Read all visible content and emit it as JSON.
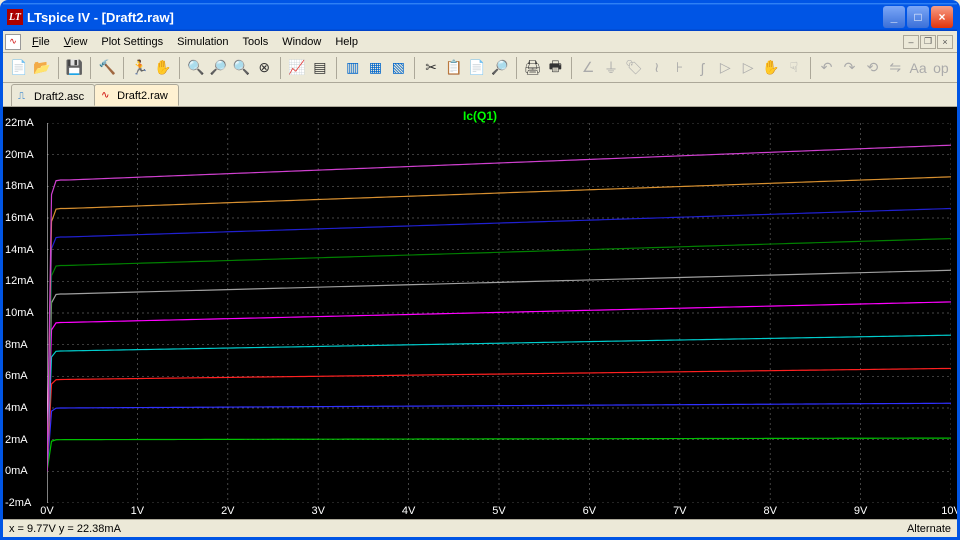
{
  "window": {
    "title": "LTspice IV - [Draft2.raw]"
  },
  "menu": {
    "file": "File",
    "view": "View",
    "plot_settings": "Plot Settings",
    "simulation": "Simulation",
    "tools": "Tools",
    "window": "Window",
    "help": "Help"
  },
  "tabs": {
    "t0": "Draft2.asc",
    "t1": "Draft2.raw"
  },
  "plot": {
    "title": "Ic(Q1)",
    "y_ticks": [
      "22mA",
      "20mA",
      "18mA",
      "16mA",
      "14mA",
      "12mA",
      "10mA",
      "8mA",
      "6mA",
      "4mA",
      "2mA",
      "0mA",
      "-2mA"
    ],
    "x_ticks": [
      "0V",
      "1V",
      "2V",
      "3V",
      "4V",
      "5V",
      "6V",
      "7V",
      "8V",
      "9V",
      "10V"
    ],
    "y_min_mA": -2,
    "y_max_mA": 22,
    "x_min_V": 0,
    "x_max_V": 10,
    "grid_color": "#606060",
    "axis_color": "#ffffff",
    "background": "#000000",
    "series": [
      {
        "knee_mA": 2.0,
        "end_mA": 2.1,
        "color": "#00c000"
      },
      {
        "knee_mA": 4.0,
        "end_mA": 4.3,
        "color": "#3030ff"
      },
      {
        "knee_mA": 5.8,
        "end_mA": 6.5,
        "color": "#ff2020"
      },
      {
        "knee_mA": 7.6,
        "end_mA": 8.6,
        "color": "#00cccc"
      },
      {
        "knee_mA": 9.4,
        "end_mA": 10.7,
        "color": "#ff00ff"
      },
      {
        "knee_mA": 11.2,
        "end_mA": 12.7,
        "color": "#a0a0a0"
      },
      {
        "knee_mA": 13.0,
        "end_mA": 14.7,
        "color": "#008000"
      },
      {
        "knee_mA": 14.8,
        "end_mA": 16.6,
        "color": "#2020d0"
      },
      {
        "knee_mA": 16.6,
        "end_mA": 18.6,
        "color": "#d89030"
      },
      {
        "knee_mA": 18.4,
        "end_mA": 20.6,
        "color": "#d040d0"
      }
    ],
    "line_width": 1.2
  },
  "status": {
    "coords": "x = 9.77V     y = 22.38mA",
    "mode": "Alternate"
  }
}
